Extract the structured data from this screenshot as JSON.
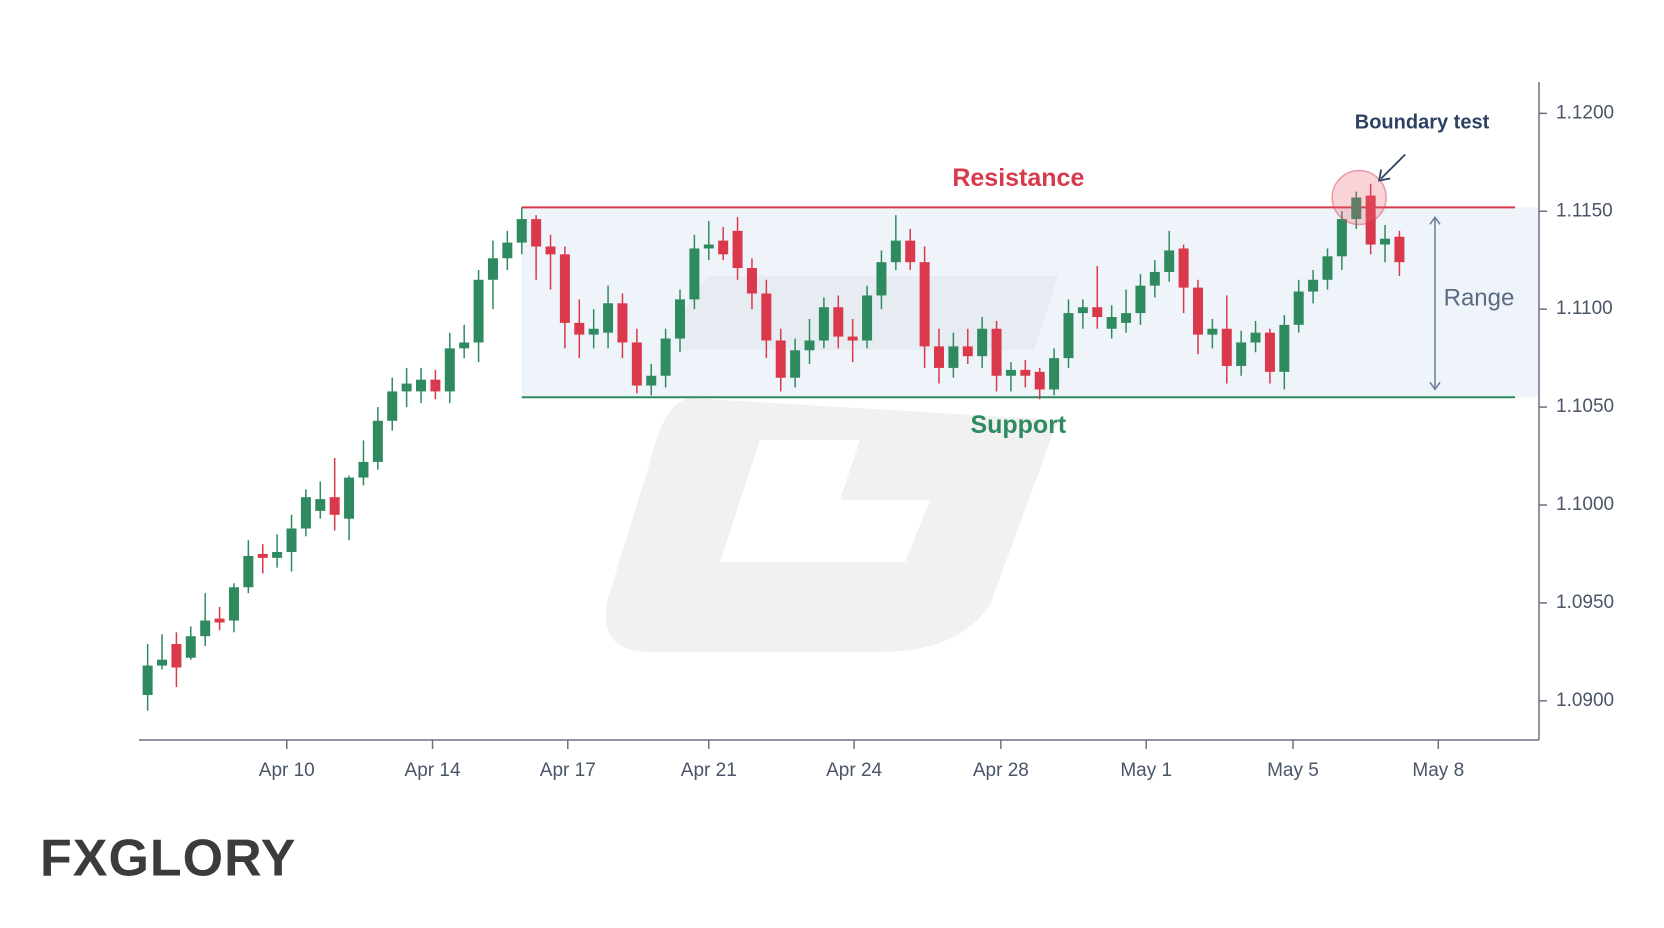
{
  "chart_data": {
    "type": "candlestick",
    "up_color": "#2f8a60",
    "down_color": "#d9394b",
    "x": [
      0,
      1,
      2,
      3,
      4,
      5,
      6,
      7,
      8,
      9,
      10,
      11,
      12,
      13,
      14,
      15,
      16,
      17,
      18,
      19,
      20,
      21,
      22,
      23,
      24,
      25,
      26,
      27,
      28,
      29,
      30,
      31,
      32,
      33,
      34,
      35,
      36,
      37,
      38,
      39,
      40,
      41,
      42,
      43,
      44,
      45,
      46,
      47,
      48,
      49,
      50,
      51,
      52,
      53,
      54,
      55,
      56,
      57,
      58,
      59,
      60,
      61,
      62,
      63,
      64,
      65,
      66,
      67,
      68,
      69,
      70,
      71,
      72,
      73,
      74,
      75,
      76,
      77,
      78,
      79,
      80,
      81,
      82,
      83,
      84,
      85,
      86,
      87
    ],
    "open": [
      1.0903,
      1.0918,
      1.0929,
      1.0922,
      1.0933,
      1.0942,
      1.0941,
      1.0958,
      1.0975,
      1.0973,
      1.0976,
      1.0988,
      1.0997,
      1.1004,
      1.0993,
      1.1014,
      1.1022,
      1.1043,
      1.1058,
      1.1058,
      1.1064,
      1.1058,
      1.108,
      1.1083,
      1.1115,
      1.1126,
      1.1134,
      1.1146,
      1.1132,
      1.1128,
      1.1093,
      1.1087,
      1.1088,
      1.1103,
      1.1083,
      1.1061,
      1.1066,
      1.1085,
      1.1105,
      1.1131,
      1.1135,
      1.114,
      1.1121,
      1.1108,
      1.1084,
      1.1065,
      1.1079,
      1.1084,
      1.1101,
      1.1086,
      1.1084,
      1.1107,
      1.1124,
      1.1135,
      1.1124,
      1.1081,
      1.107,
      1.1081,
      1.1076,
      1.109,
      1.1066,
      1.1069,
      1.1068,
      1.1059,
      1.1075,
      1.1098,
      1.1101,
      1.109,
      1.1093,
      1.1098,
      1.1112,
      1.1119,
      1.1131,
      1.1111,
      1.1087,
      1.109,
      1.1071,
      1.1083,
      1.1088,
      1.1068,
      1.1092,
      1.1109,
      1.1115,
      1.1127,
      1.1146,
      1.1158,
      1.1133,
      1.1137
    ],
    "high": [
      1.0929,
      1.0934,
      1.0935,
      1.0938,
      1.0955,
      1.0948,
      1.096,
      1.0982,
      1.098,
      1.0985,
      1.0995,
      1.1008,
      1.1012,
      1.1024,
      1.1015,
      1.1033,
      1.105,
      1.1065,
      1.107,
      1.107,
      1.1069,
      1.1088,
      1.1092,
      1.112,
      1.1135,
      1.114,
      1.1152,
      1.1148,
      1.1138,
      1.1132,
      1.1105,
      1.11,
      1.1112,
      1.1108,
      1.109,
      1.1072,
      1.109,
      1.111,
      1.1138,
      1.1145,
      1.1142,
      1.1147,
      1.1126,
      1.1115,
      1.109,
      1.1085,
      1.1095,
      1.1106,
      1.1107,
      1.1095,
      1.1112,
      1.113,
      1.1148,
      1.1141,
      1.1132,
      1.109,
      1.1088,
      1.109,
      1.1096,
      1.1094,
      1.1073,
      1.1074,
      1.107,
      1.108,
      1.1105,
      1.1105,
      1.1122,
      1.1102,
      1.111,
      1.1118,
      1.1125,
      1.114,
      1.1133,
      1.1115,
      1.1095,
      1.1107,
      1.1089,
      1.1094,
      1.109,
      1.1097,
      1.1115,
      1.112,
      1.1131,
      1.115,
      1.116,
      1.1164,
      1.1143,
      1.114
    ],
    "low": [
      1.0895,
      1.0916,
      1.0907,
      1.0921,
      1.0928,
      1.0936,
      1.0935,
      1.0955,
      1.0965,
      1.0968,
      1.0966,
      1.0984,
      1.0993,
      1.0987,
      1.0982,
      1.101,
      1.1018,
      1.1038,
      1.105,
      1.1052,
      1.1054,
      1.1052,
      1.1075,
      1.1073,
      1.11,
      1.112,
      1.1128,
      1.1115,
      1.111,
      1.108,
      1.1075,
      1.108,
      1.108,
      1.1075,
      1.1057,
      1.1056,
      1.106,
      1.1078,
      1.11,
      1.1125,
      1.1125,
      1.1115,
      1.11,
      1.1075,
      1.1058,
      1.106,
      1.1072,
      1.108,
      1.108,
      1.1073,
      1.108,
      1.11,
      1.112,
      1.112,
      1.107,
      1.1062,
      1.1065,
      1.1072,
      1.107,
      1.1058,
      1.1058,
      1.106,
      1.1054,
      1.1056,
      1.107,
      1.109,
      1.109,
      1.1085,
      1.1088,
      1.1092,
      1.1106,
      1.1114,
      1.1098,
      1.1077,
      1.108,
      1.1062,
      1.1066,
      1.1078,
      1.1062,
      1.1059,
      1.1088,
      1.1103,
      1.111,
      1.112,
      1.1141,
      1.1128,
      1.1124,
      1.1117
    ],
    "close": [
      1.0918,
      1.0921,
      1.0917,
      1.0933,
      1.0941,
      1.094,
      1.0958,
      1.0974,
      1.0973,
      1.0976,
      1.0988,
      1.1004,
      1.1003,
      1.0995,
      1.1014,
      1.1022,
      1.1043,
      1.1058,
      1.1062,
      1.1064,
      1.1058,
      1.108,
      1.1083,
      1.1115,
      1.1126,
      1.1134,
      1.1146,
      1.1132,
      1.1128,
      1.1093,
      1.1087,
      1.109,
      1.1103,
      1.1083,
      1.1061,
      1.1066,
      1.1085,
      1.1105,
      1.1131,
      1.1133,
      1.1128,
      1.1121,
      1.1108,
      1.1084,
      1.1065,
      1.1079,
      1.1084,
      1.1101,
      1.1086,
      1.1084,
      1.1107,
      1.1124,
      1.1135,
      1.1124,
      1.1081,
      1.107,
      1.1081,
      1.1076,
      1.109,
      1.1066,
      1.1069,
      1.1066,
      1.1059,
      1.1075,
      1.1098,
      1.1101,
      1.1096,
      1.1096,
      1.1098,
      1.1112,
      1.1119,
      1.113,
      1.1111,
      1.1087,
      1.109,
      1.1071,
      1.1083,
      1.1088,
      1.1068,
      1.1092,
      1.1109,
      1.1115,
      1.1127,
      1.1146,
      1.1157,
      1.1133,
      1.1136,
      1.1124
    ],
    "xlim": [
      -0.6,
      96.7
    ],
    "ylim": [
      1.088,
      1.1216
    ],
    "xticks": [
      {
        "value": 9.67,
        "label": "Apr 10"
      },
      {
        "value": 19.8,
        "label": "Apr 14"
      },
      {
        "value": 29.2,
        "label": "Apr 17"
      },
      {
        "value": 39.0,
        "label": "Apr 21"
      },
      {
        "value": 49.1,
        "label": "Apr 24"
      },
      {
        "value": 59.3,
        "label": "Apr 28"
      },
      {
        "value": 69.4,
        "label": "May 1"
      },
      {
        "value": 79.6,
        "label": "May 5"
      },
      {
        "value": 89.7,
        "label": "May 8"
      }
    ],
    "yticks": [
      {
        "value": 1.09,
        "label": "1.0900"
      },
      {
        "value": 1.095,
        "label": "1.0950"
      },
      {
        "value": 1.1,
        "label": "1.1000"
      },
      {
        "value": 1.105,
        "label": "1.1050"
      },
      {
        "value": 1.11,
        "label": "1.1100"
      },
      {
        "value": 1.115,
        "label": "1.1150"
      },
      {
        "value": 1.12,
        "label": "1.1200"
      }
    ],
    "resistance": {
      "label": "Resistance",
      "value": 1.1152,
      "x_start": 26,
      "color": "#d63a4c"
    },
    "support": {
      "label": "Support",
      "value": 1.1055,
      "x_start": 26,
      "color": "#2e8b5f"
    },
    "range_label": "Range",
    "boundary_test": {
      "label": "Boundary test",
      "x": 84.2,
      "value": 1.1157
    },
    "logo": "FXGLORY"
  }
}
